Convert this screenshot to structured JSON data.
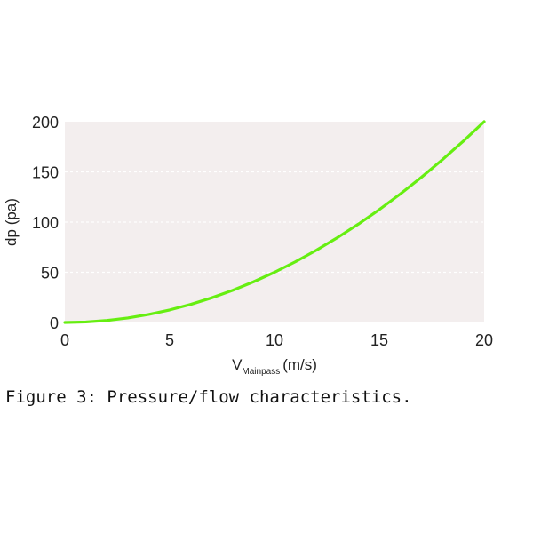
{
  "chart_data": {
    "type": "line",
    "title": "",
    "xlabel": {
      "main": "V",
      "subscript": "Mainpass",
      "unit": "(m/s)"
    },
    "ylabel": "dp (pa)",
    "xlim": [
      0,
      20
    ],
    "ylim": [
      0,
      200
    ],
    "xticks": [
      0,
      5,
      10,
      15,
      20
    ],
    "yticks": [
      0,
      50,
      100,
      150,
      200
    ],
    "grid": "horizontal-dashed",
    "legend": "none",
    "series": [
      {
        "color": "#66ee11",
        "x": [
          0,
          1,
          2,
          3,
          4,
          5,
          6,
          7,
          8,
          9,
          10,
          11,
          12,
          13,
          14,
          15,
          16,
          17,
          18,
          19,
          20
        ],
        "y": [
          0,
          0.5,
          2,
          4.5,
          8,
          12.5,
          18,
          24.5,
          32,
          40.5,
          50,
          60.5,
          72,
          84.5,
          98,
          112.5,
          128,
          144.5,
          162,
          180.5,
          200
        ]
      }
    ],
    "colors": {
      "plot_background": "#f3eeee",
      "grid": "#ffffff",
      "line": "#66ee11"
    }
  },
  "caption": "Figure 3: Pressure/flow characteristics."
}
